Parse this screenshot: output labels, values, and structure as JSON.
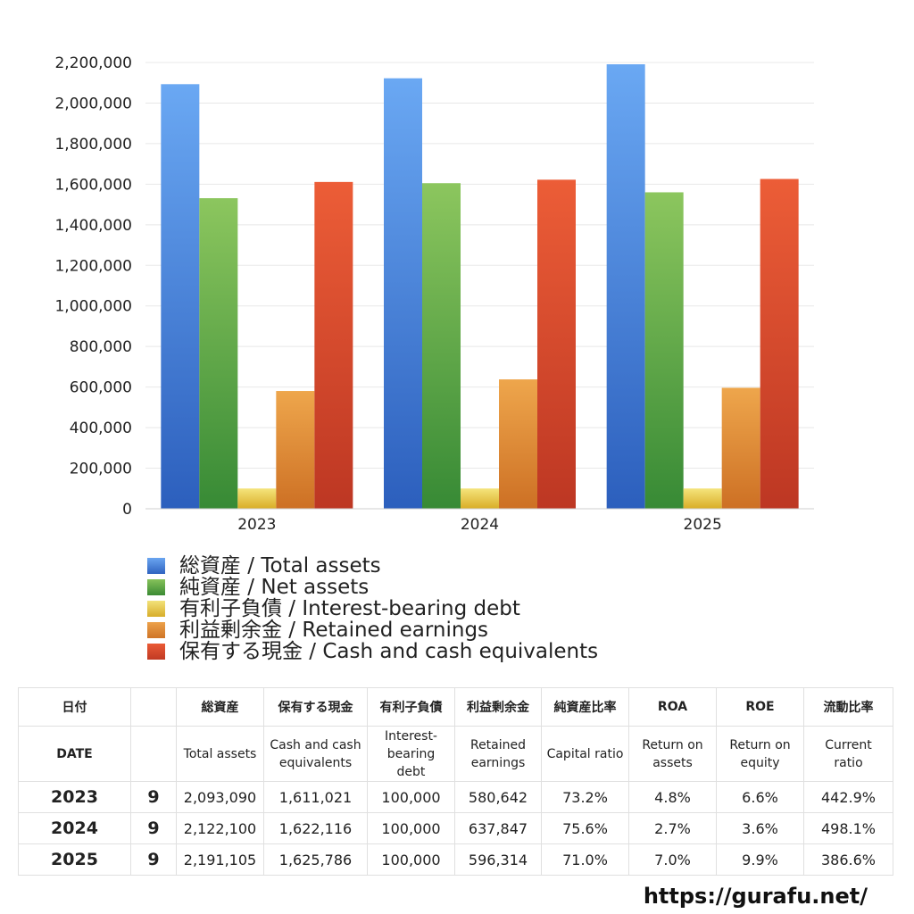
{
  "chart_data": {
    "type": "bar",
    "categories": [
      "2023",
      "2024",
      "2025"
    ],
    "series": [
      {
        "name": "総資産 / Total assets",
        "values": [
          2093090,
          2122100,
          2191105
        ],
        "color": "#3d7fd9"
      },
      {
        "name": "純資産 / Net assets",
        "values": [
          1531000,
          1605000,
          1560000
        ],
        "color": "#56a84a"
      },
      {
        "name": "有利子負債 / Interest-bearing debt",
        "values": [
          100000,
          100000,
          100000
        ],
        "color": "#e6c43a"
      },
      {
        "name": "利益剰余金 / Retained earnings",
        "values": [
          580642,
          637847,
          596314
        ],
        "color": "#e08a34"
      },
      {
        "name": "保有する現金 /  Cash and cash equivalents",
        "values": [
          1611021,
          1622116,
          1625786
        ],
        "color": "#d9472b"
      }
    ],
    "ylim": [
      0,
      2200000
    ],
    "yticks": [
      0,
      200000,
      400000,
      600000,
      800000,
      1000000,
      1200000,
      1400000,
      1600000,
      1800000,
      2000000,
      2200000
    ],
    "ytick_labels": [
      "0",
      "200,000",
      "400,000",
      "600,000",
      "800,000",
      "1,000,000",
      "1,200,000",
      "1,400,000",
      "1,600,000",
      "1,800,000",
      "2,000,000",
      "2,200,000"
    ],
    "grid": true,
    "legend_position": "bottom-left"
  },
  "table": {
    "header_ja": [
      "日付",
      "",
      "総資産",
      "保有する現金",
      "有利子負債",
      "利益剰余金",
      "純資産比率",
      "ROA",
      "ROE",
      "流動比率"
    ],
    "header_en": [
      "DATE",
      "",
      "Total assets",
      "Cash and cash\nequivalents",
      "Interest-\nbearing\ndebt",
      "Retained\nearnings",
      "Capital ratio",
      "Return on\nassets",
      "Return on\nequity",
      "Current\nratio"
    ],
    "rows": [
      [
        "2023",
        "9",
        "2,093,090",
        "1,611,021",
        "100,000",
        "580,642",
        "73.2%",
        "4.8%",
        "6.6%",
        "442.9%"
      ],
      [
        "2024",
        "9",
        "2,122,100",
        "1,622,116",
        "100,000",
        "637,847",
        "75.6%",
        "2.7%",
        "3.6%",
        "498.1%"
      ],
      [
        "2025",
        "9",
        "2,191,105",
        "1,625,786",
        "100,000",
        "596,314",
        "71.0%",
        "7.0%",
        "9.9%",
        "386.6%"
      ]
    ]
  },
  "source_url": "https://gurafu.net/"
}
